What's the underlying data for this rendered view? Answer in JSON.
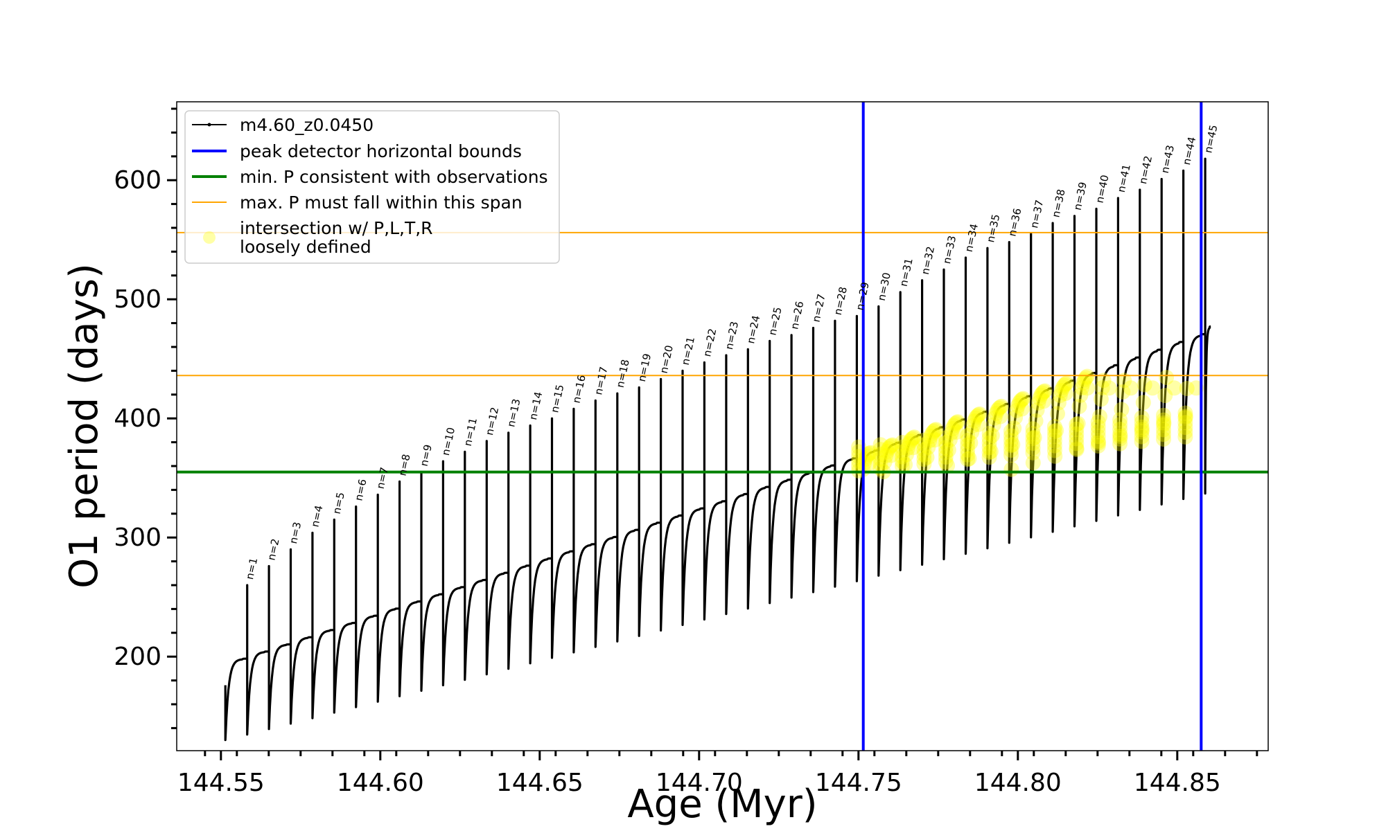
{
  "chart_data": {
    "type": "line",
    "xlabel": "Age (Myr)",
    "ylabel": "O1 period (days)",
    "xlim": [
      144.542,
      144.88
    ],
    "ylim": [
      118,
      665
    ],
    "xticks": [
      {
        "value": 144.55,
        "label": "144.55"
      },
      {
        "value": 144.6,
        "label": "144.60"
      },
      {
        "value": 144.65,
        "label": "144.65"
      },
      {
        "value": 144.7,
        "label": "144.70"
      },
      {
        "value": 144.75,
        "label": "144.75"
      },
      {
        "value": 144.8,
        "label": "144.80"
      },
      {
        "value": 144.85,
        "label": "144.85"
      }
    ],
    "yticks": [
      {
        "value": 200,
        "label": "200"
      },
      {
        "value": 300,
        "label": "300"
      },
      {
        "value": 400,
        "label": "400"
      },
      {
        "value": 500,
        "label": "500"
      },
      {
        "value": 600,
        "label": "600"
      }
    ],
    "series": [
      {
        "name": "m4.60_z0.0450",
        "type": "line",
        "color": "#000000",
        "description": "periodic pulse cycles; cycle n starts near age 144.551 + 0.00683*n with a sharp spike"
      },
      {
        "name": "peak detector horizontal bounds",
        "type": "vline",
        "color": "#0000ff",
        "x": [
          144.7515,
          144.8575
        ]
      },
      {
        "name": "min. P consistent with observations",
        "type": "hline",
        "color": "#008000",
        "y": [
          355
        ]
      },
      {
        "name": "max. P must fall within this span",
        "type": "hline",
        "color": "#ffa500",
        "y": [
          436,
          556
        ]
      },
      {
        "name": "intersection w/ P,L,T,R\nloosely defined",
        "type": "scatter",
        "color": "#ffff00"
      }
    ],
    "legend": {
      "position": "top-left",
      "entries": [
        {
          "label": "m4.60_z0.0450",
          "color": "#000000",
          "style": "line-marker"
        },
        {
          "label": "peak detector horizontal bounds",
          "color": "#0000ff",
          "style": "line"
        },
        {
          "label": "min. P consistent with observations",
          "color": "#008000",
          "style": "line"
        },
        {
          "label": "max. P must fall within this span",
          "color": "#ffa500",
          "style": "thin-line"
        },
        {
          "label_lines": [
            "intersection w/ P,L,T,R",
            "loosely defined"
          ],
          "color": "#ffff00",
          "style": "marker"
        }
      ]
    },
    "pulse_labels": [
      {
        "label": "n=1",
        "x": 144.5587,
        "y": 262
      },
      {
        "label": "n=2",
        "x": 144.5655,
        "y": 278
      },
      {
        "label": "n=3",
        "x": 144.5724,
        "y": 292
      },
      {
        "label": "n=4",
        "x": 144.5792,
        "y": 306
      },
      {
        "label": "n=5",
        "x": 144.586,
        "y": 317
      },
      {
        "label": "n=6",
        "x": 144.5929,
        "y": 328
      },
      {
        "label": "n=7",
        "x": 144.5997,
        "y": 338
      },
      {
        "label": "n=8",
        "x": 144.6066,
        "y": 349
      },
      {
        "label": "n=9",
        "x": 144.6134,
        "y": 357
      },
      {
        "label": "n=10",
        "x": 144.6202,
        "y": 366
      },
      {
        "label": "n=11",
        "x": 144.6271,
        "y": 374
      },
      {
        "label": "n=12",
        "x": 144.6339,
        "y": 383
      },
      {
        "label": "n=13",
        "x": 144.6407,
        "y": 390
      },
      {
        "label": "n=14",
        "x": 144.6476,
        "y": 396
      },
      {
        "label": "n=15",
        "x": 144.6544,
        "y": 402
      },
      {
        "label": "n=16",
        "x": 144.6612,
        "y": 410
      },
      {
        "label": "n=17",
        "x": 144.6681,
        "y": 417
      },
      {
        "label": "n=18",
        "x": 144.6749,
        "y": 423
      },
      {
        "label": "n=19",
        "x": 144.6817,
        "y": 428
      },
      {
        "label": "n=20",
        "x": 144.6886,
        "y": 435
      },
      {
        "label": "n=21",
        "x": 144.6954,
        "y": 442
      },
      {
        "label": "n=22",
        "x": 144.7022,
        "y": 449
      },
      {
        "label": "n=23",
        "x": 144.7091,
        "y": 455
      },
      {
        "label": "n=24",
        "x": 144.7159,
        "y": 460
      },
      {
        "label": "n=25",
        "x": 144.7227,
        "y": 467
      },
      {
        "label": "n=26",
        "x": 144.7296,
        "y": 472
      },
      {
        "label": "n=27",
        "x": 144.7364,
        "y": 478
      },
      {
        "label": "n=28",
        "x": 144.7432,
        "y": 484
      },
      {
        "label": "n=29",
        "x": 144.7501,
        "y": 488
      },
      {
        "label": "n=30",
        "x": 144.7569,
        "y": 496
      },
      {
        "label": "n=31",
        "x": 144.7638,
        "y": 508
      },
      {
        "label": "n=32",
        "x": 144.7706,
        "y": 518
      },
      {
        "label": "n=33",
        "x": 144.7774,
        "y": 527
      },
      {
        "label": "n=34",
        "x": 144.7843,
        "y": 537
      },
      {
        "label": "n=35",
        "x": 144.7911,
        "y": 545
      },
      {
        "label": "n=36",
        "x": 144.7979,
        "y": 550
      },
      {
        "label": "n=37",
        "x": 144.8048,
        "y": 557
      },
      {
        "label": "n=38",
        "x": 144.8116,
        "y": 566
      },
      {
        "label": "n=39",
        "x": 144.8184,
        "y": 572
      },
      {
        "label": "n=40",
        "x": 144.8253,
        "y": 578
      },
      {
        "label": "n=41",
        "x": 144.8321,
        "y": 587
      },
      {
        "label": "n=42",
        "x": 144.8389,
        "y": 594
      },
      {
        "label": "n=43",
        "x": 144.8458,
        "y": 603
      },
      {
        "label": "n=44",
        "x": 144.8526,
        "y": 610
      },
      {
        "label": "n=45",
        "x": 144.8594,
        "y": 620
      }
    ]
  }
}
